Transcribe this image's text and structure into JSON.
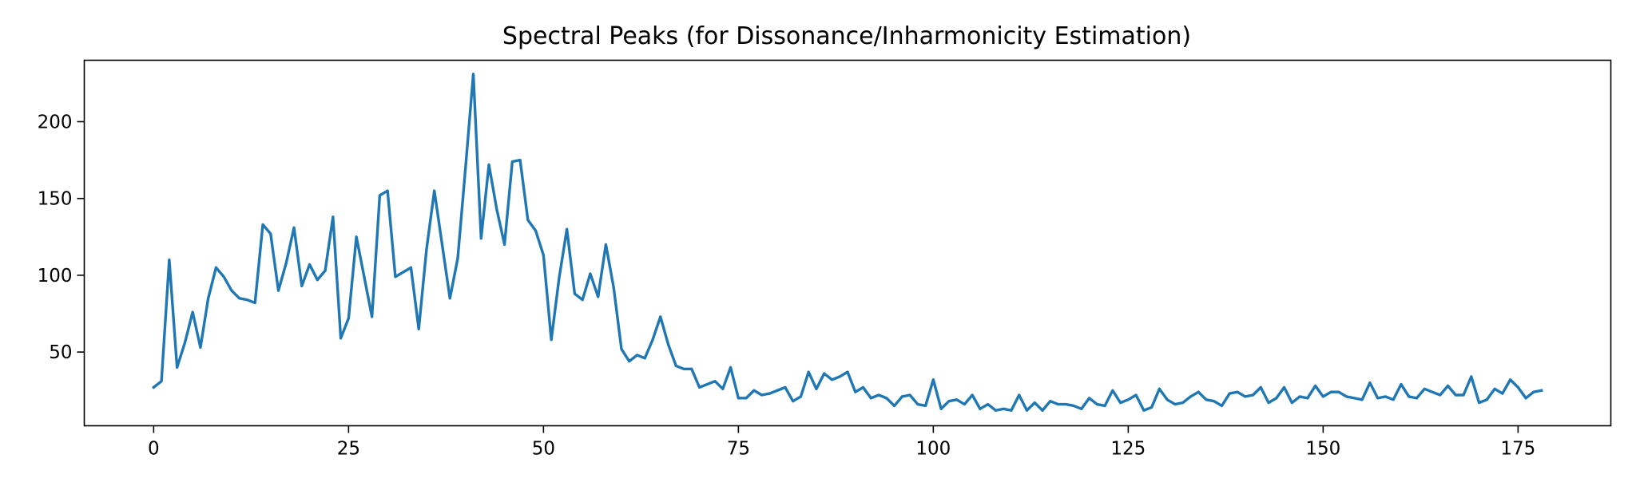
{
  "chart_data": {
    "type": "line",
    "title": "Spectral Peaks (for Dissonance/Inharmonicity Estimation)",
    "xlabel": "",
    "ylabel": "",
    "xlim": [
      -8.9,
      186.9
    ],
    "ylim": [
      2,
      240
    ],
    "x_ticks": [
      0,
      25,
      50,
      75,
      100,
      125,
      150,
      175
    ],
    "x_tick_labels": [
      "0",
      "25",
      "50",
      "75",
      "100",
      "125",
      "150",
      "175"
    ],
    "y_ticks": [
      50,
      100,
      150,
      200
    ],
    "y_tick_labels": [
      "50",
      "100",
      "150",
      "200"
    ],
    "grid": false,
    "legend": "none",
    "series": [
      {
        "color": "#1f77b4",
        "values": [
          27,
          31,
          110,
          40,
          56,
          76,
          53,
          85,
          105,
          99,
          90,
          85,
          84,
          82,
          133,
          127,
          90,
          108,
          131,
          93,
          107,
          97,
          103,
          138,
          59,
          72,
          125,
          99,
          73,
          152,
          155,
          99,
          102,
          105,
          65,
          117,
          155,
          120,
          85,
          111,
          170,
          231,
          124,
          172,
          143,
          120,
          174,
          175,
          136,
          129,
          113,
          58,
          98,
          130,
          88,
          84,
          101,
          86,
          120,
          92,
          52,
          44,
          48,
          46,
          58,
          73,
          55,
          41,
          39,
          39,
          27,
          29,
          31,
          26,
          40,
          20,
          20,
          25,
          22,
          23,
          25,
          27,
          18,
          21,
          37,
          26,
          36,
          32,
          34,
          37,
          24,
          27,
          20,
          22,
          20,
          15,
          21,
          22,
          16,
          15,
          32,
          13,
          18,
          19,
          16,
          22,
          13,
          16,
          12,
          13,
          12,
          22,
          12,
          17,
          12,
          18,
          16,
          16,
          15,
          13,
          20,
          16,
          15,
          25,
          17,
          19,
          22,
          12,
          14,
          26,
          19,
          16,
          17,
          21,
          24,
          19,
          18,
          15,
          23,
          24,
          21,
          22,
          27,
          17,
          20,
          27,
          17,
          21,
          20,
          28,
          21,
          24,
          24,
          21,
          20,
          19,
          30,
          20,
          21,
          19,
          29,
          21,
          20,
          26,
          24,
          22,
          28,
          22,
          22,
          34,
          17,
          19,
          26,
          23,
          32,
          27,
          20,
          24,
          25
        ]
      }
    ]
  }
}
